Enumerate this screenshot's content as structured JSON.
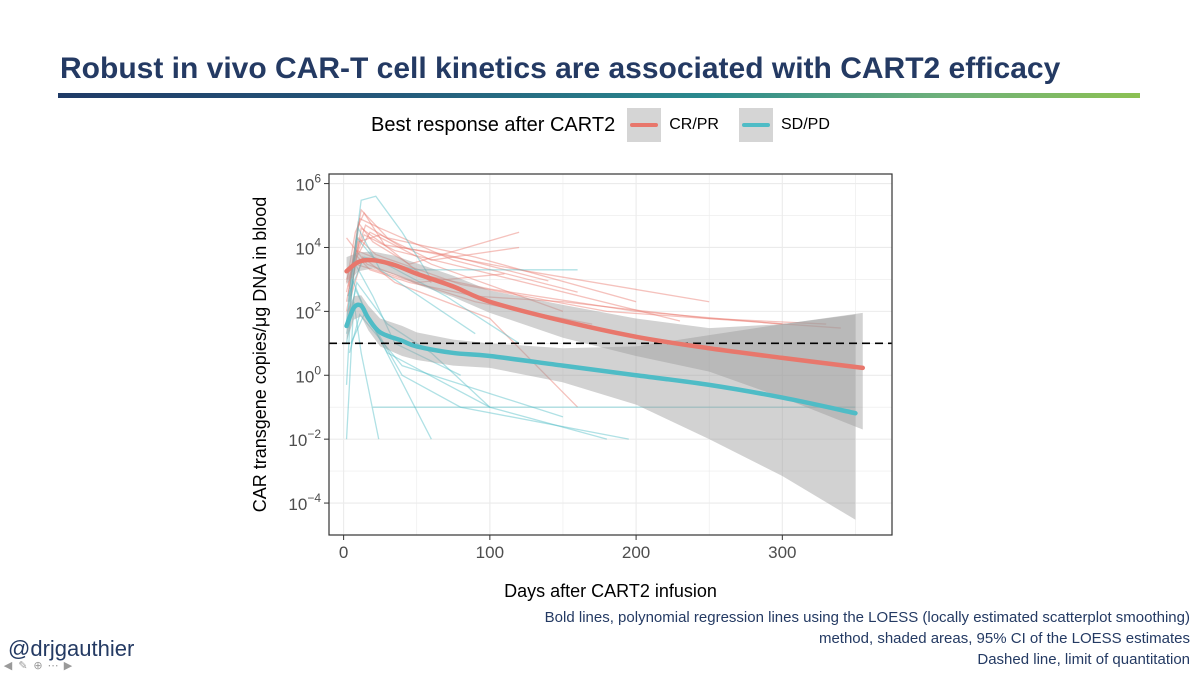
{
  "slide": {
    "title": "Robust in vivo CAR-T cell kinetics are associated with CART2 efficacy",
    "handle": "@drjgauthier",
    "footnote": [
      "Bold lines, polynomial regression lines using the LOESS (locally estimated scatterplot smoothing)",
      "method, shaded areas, 95% CI of the LOESS estimates",
      "Dashed line, limit of quantitation"
    ],
    "controls": [
      "arrow-left-icon",
      "pen-icon",
      "zoom-icon",
      "more-icon",
      "arrow-right-icon"
    ]
  },
  "colors": {
    "title": "#243a63",
    "crpr": "#e8776c",
    "sdpd": "#4fbcc6",
    "ci_band": "#9b9b9b",
    "legend_key_bg": "#d5d5d5",
    "lod_line": "#000000"
  },
  "chart_data": {
    "type": "line",
    "y_scale": "log10",
    "xlabel": "Days after CART2 infusion",
    "ylabel": "CAR transgene copies/μg DNA in blood",
    "xlim": [
      -10,
      375
    ],
    "ylim_log10": [
      -5,
      6.3
    ],
    "xticks": [
      0,
      100,
      200,
      300
    ],
    "yticks_log10": [
      -4,
      -2,
      0,
      2,
      4,
      6
    ],
    "grid": true,
    "legend_title": "Best response after CART2",
    "legend_position": "top",
    "limit_of_quantitation": 10,
    "series": [
      {
        "name": "CR/PR",
        "loess_fit": {
          "x": [
            2,
            10,
            20,
            35,
            50,
            75,
            100,
            150,
            200,
            250,
            300,
            355
          ],
          "y": [
            1800,
            3500,
            4000,
            2800,
            1500,
            600,
            200,
            50,
            16,
            7,
            3.5,
            1.7
          ]
        },
        "ci95": {
          "x": [
            2,
            10,
            20,
            35,
            50,
            75,
            100,
            150,
            200,
            250,
            300,
            355
          ],
          "lower": [
            700,
            1800,
            2200,
            1400,
            700,
            280,
            90,
            15,
            4,
            1.3,
            0.2,
            0.02
          ],
          "upper": [
            5000,
            7000,
            7500,
            5500,
            3200,
            1300,
            450,
            160,
            60,
            30,
            40,
            90
          ]
        }
      },
      {
        "name": "SD/PD",
        "loess_fit": {
          "x": [
            2,
            7,
            12,
            17,
            25,
            40,
            50,
            75,
            100,
            150,
            200,
            250,
            300,
            350
          ],
          "y": [
            35,
            130,
            150,
            60,
            22,
            12,
            8,
            5,
            4,
            2,
            1,
            0.5,
            0.2,
            0.065
          ]
        },
        "ci95": {
          "x": [
            2,
            7,
            12,
            17,
            25,
            40,
            50,
            75,
            100,
            150,
            200,
            250,
            300,
            350
          ],
          "lower": [
            12,
            55,
            70,
            25,
            8,
            4,
            3,
            2,
            1.7,
            0.6,
            0.12,
            0.01,
            0.0007,
            3e-05
          ],
          "upper": [
            95,
            300,
            320,
            150,
            60,
            35,
            22,
            13,
            10,
            7,
            8,
            18,
            40,
            80
          ]
        }
      }
    ],
    "individual_patients": [
      {
        "group": "CR/PR",
        "x": [
          2,
          8,
          14,
          28,
          60
        ],
        "y": [
          800,
          30000,
          120000,
          12000,
          800
        ]
      },
      {
        "group": "CR/PR",
        "x": [
          3,
          10,
          20,
          45,
          120
        ],
        "y": [
          300,
          60000,
          15000,
          3000,
          30000
        ]
      },
      {
        "group": "CR/PR",
        "x": [
          5,
          12,
          30,
          90,
          200
        ],
        "y": [
          2000,
          150000,
          20000,
          5000,
          200
        ]
      },
      {
        "group": "CR/PR",
        "x": [
          2,
          9,
          18,
          60,
          150
        ],
        "y": [
          100,
          5000,
          30000,
          3000,
          100
        ]
      },
      {
        "group": "CR/PR",
        "x": [
          4,
          11,
          25,
          75,
          160
        ],
        "y": [
          500,
          80000,
          40000,
          4000,
          400
        ]
      },
      {
        "group": "CR/PR",
        "x": [
          3,
          14,
          35,
          100,
          230
        ],
        "y": [
          1000,
          25000,
          8000,
          1500,
          50
        ]
      },
      {
        "group": "CR/PR",
        "x": [
          2,
          7,
          16,
          50,
          110
        ],
        "y": [
          20000,
          10000,
          3000,
          800,
          1500
        ]
      },
      {
        "group": "CR/PR",
        "x": [
          6,
          15,
          40,
          120,
          250
        ],
        "y": [
          3000,
          50000,
          10000,
          2000,
          200
        ]
      },
      {
        "group": "CR/PR",
        "x": [
          2,
          10,
          22,
          80,
          180,
          340
        ],
        "y": [
          400,
          20000,
          6000,
          700,
          100,
          30
        ]
      },
      {
        "group": "CR/PR",
        "x": [
          3,
          8,
          30,
          90,
          170
        ],
        "y": [
          50,
          3000,
          1500,
          200,
          40
        ]
      },
      {
        "group": "CR/PR",
        "x": [
          4,
          12,
          28,
          70,
          140
        ],
        "y": [
          200,
          40000,
          12000,
          6000,
          900
        ]
      },
      {
        "group": "CR/PR",
        "x": [
          2,
          9,
          20,
          50,
          100,
          200,
          300
        ],
        "y": [
          1000,
          8000,
          5000,
          1500,
          500,
          100,
          40
        ]
      },
      {
        "group": "CR/PR",
        "x": [
          5,
          13,
          35,
          100,
          160
        ],
        "y": [
          300,
          5000,
          800,
          60,
          0.1
        ]
      },
      {
        "group": "CR/PR",
        "x": [
          3,
          10,
          25,
          60,
          120
        ],
        "y": [
          600,
          15000,
          25000,
          4000,
          10000
        ]
      },
      {
        "group": "CR/PR",
        "x": [
          2,
          8,
          18,
          45,
          90,
          150,
          250,
          330
        ],
        "y": [
          200,
          6000,
          2000,
          800,
          300,
          200,
          60,
          40
        ]
      },
      {
        "group": "SD/PD",
        "x": [
          3,
          12,
          22,
          40,
          60
        ],
        "y": [
          200,
          300000,
          400000,
          30000,
          1000
        ]
      },
      {
        "group": "SD/PD",
        "x": [
          2,
          9,
          20,
          70,
          120
        ],
        "y": [
          50,
          20000,
          5000,
          300,
          10
        ]
      },
      {
        "group": "SD/PD",
        "x": [
          2,
          6,
          15,
          60
        ],
        "y": [
          0.5,
          1000,
          100,
          0.01
        ]
      },
      {
        "group": "SD/PD",
        "x": [
          2,
          8,
          18,
          30,
          100,
          180
        ],
        "y": [
          10,
          500,
          50,
          5,
          0.1,
          0.01
        ]
      },
      {
        "group": "SD/PD",
        "x": [
          3,
          10,
          25,
          90
        ],
        "y": [
          30,
          40000,
          2000,
          20
        ]
      },
      {
        "group": "SD/PD",
        "x": [
          2,
          7,
          12,
          24
        ],
        "y": [
          0.01,
          200,
          5,
          0.01
        ]
      },
      {
        "group": "SD/PD",
        "x": [
          3,
          8,
          20,
          35,
          80
        ],
        "y": [
          100,
          3000,
          300,
          10,
          1
        ]
      },
      {
        "group": "SD/PD",
        "x": [
          4,
          11,
          40,
          150
        ],
        "y": [
          5,
          80,
          2,
          0.05
        ]
      },
      {
        "group": "SD/PD",
        "x": [
          2,
          9,
          30,
          60,
          100
        ],
        "y": [
          20,
          800,
          40,
          5,
          0.1
        ]
      },
      {
        "group": "SD/PD",
        "x": [
          3,
          14,
          50,
          160
        ],
        "y": [
          300,
          5000,
          2000,
          2000
        ]
      },
      {
        "group": "SD/PD",
        "x": [
          5,
          15,
          40,
          80,
          195
        ],
        "y": [
          10,
          100,
          1,
          0.1,
          0.01
        ]
      },
      {
        "group": "SD/PD",
        "x": [
          20,
          350
        ],
        "y": [
          0.1,
          0.1
        ]
      }
    ]
  }
}
